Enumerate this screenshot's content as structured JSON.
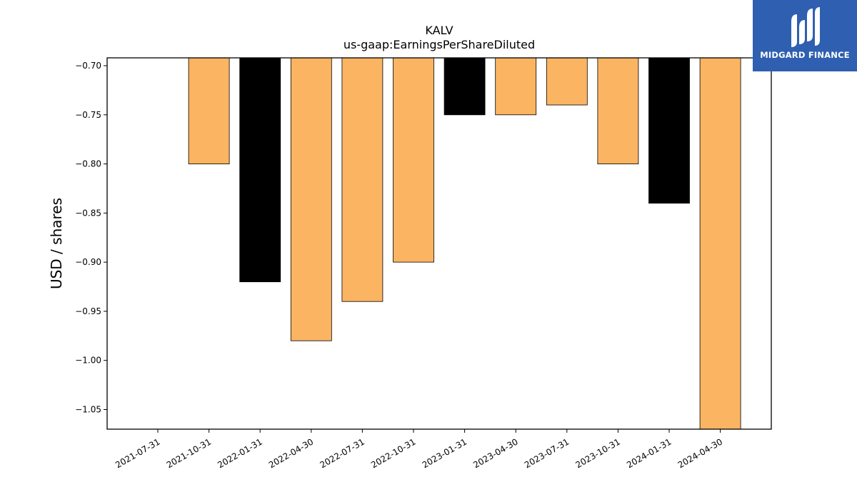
{
  "brand": {
    "name": "MIDGARD FINANCE",
    "color": "#2f5fb0"
  },
  "chart_data": {
    "type": "bar",
    "title": "KALV",
    "subtitle": "us-gaap:EarningsPerShareDiluted",
    "xlabel": "",
    "ylabel": "USD / shares",
    "categories": [
      "2021-07-31",
      "2021-10-31",
      "2022-01-31",
      "2022-04-30",
      "2022-07-31",
      "2022-10-31",
      "2023-01-31",
      "2023-04-30",
      "2023-07-31",
      "2023-10-31",
      "2024-01-31",
      "2024-04-30"
    ],
    "values": [
      null,
      -0.8,
      -0.92,
      -0.98,
      -0.94,
      -0.9,
      -0.75,
      -0.75,
      -0.74,
      -0.8,
      -0.84,
      -1.07
    ],
    "bar_colors": [
      null,
      "#fbb462",
      "#000000",
      "#fbb462",
      "#fbb462",
      "#fbb462",
      "#000000",
      "#fbb462",
      "#fbb462",
      "#fbb462",
      "#000000",
      "#fbb462"
    ],
    "yticks": [
      -0.7,
      -0.75,
      -0.8,
      -0.85,
      -0.9,
      -0.95,
      -1.0,
      -1.05
    ],
    "ylim": [
      -1.07,
      -0.692
    ],
    "grid": false,
    "legend": "none"
  }
}
